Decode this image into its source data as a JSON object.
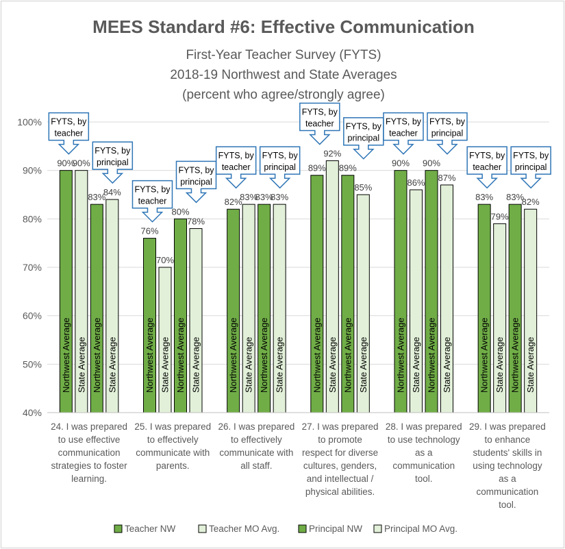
{
  "chart_data": {
    "type": "bar",
    "title": "MEES Standard #6: Effective Communication",
    "subtitle_lines": [
      "First-Year Teacher Survey (FYTS)",
      "2018-19 Northwest and State Averages",
      "(percent who agree/strongly agree)"
    ],
    "y_axis": {
      "min": 40,
      "max": 100,
      "ticks": [
        40,
        50,
        60,
        70,
        80,
        90,
        100
      ],
      "tick_labels": [
        "40%",
        "50%",
        "60%",
        "70%",
        "80%",
        "90%",
        "100%"
      ]
    },
    "grid": true,
    "categories": [
      [
        "24. I was prepared",
        "to use effective",
        "communication",
        "strategies to foster",
        "learning."
      ],
      [
        "25. I was prepared",
        "to effectively",
        "communicate with",
        "parents."
      ],
      [
        "26. I was prepared",
        "to effectively",
        "communicate with",
        "all staff."
      ],
      [
        "27. I was prepared",
        "to promote",
        "respect for diverse",
        "cultures, genders,",
        "and intellectual /",
        "physical abilities."
      ],
      [
        "28. I was prepared",
        "to use technology",
        "as a",
        "communication",
        "tool."
      ],
      [
        "29. I was prepared",
        "to enhance",
        "students' skills in",
        "using technology",
        "as a",
        "communication",
        "tool."
      ]
    ],
    "series": [
      {
        "name": "Teacher NW",
        "bar_label": "Northwest Average",
        "color": "#70ad47",
        "values": [
          90,
          76,
          82,
          89,
          90,
          83
        ]
      },
      {
        "name": "Teacher MO Avg.",
        "bar_label": "State Average",
        "color": "#e2f0d9",
        "values": [
          90,
          70,
          83,
          92,
          86,
          79
        ]
      },
      {
        "name": "Principal NW",
        "bar_label": "Northwest Average",
        "color": "#70ad47",
        "values": [
          83,
          80,
          83,
          89,
          90,
          83
        ]
      },
      {
        "name": "Principal MO Avg.",
        "bar_label": "State Average",
        "color": "#e2f0d9",
        "values": [
          84,
          78,
          83,
          85,
          87,
          82
        ]
      }
    ],
    "value_labels": [
      [
        "90%",
        "90%",
        "83%",
        "84%"
      ],
      [
        "76%",
        "70%",
        "80%",
        "78%"
      ],
      [
        "82%",
        "83%",
        "83%",
        "83%"
      ],
      [
        "89%",
        "92%",
        "89%",
        "85%"
      ],
      [
        "90%",
        "86%",
        "90%",
        "87%"
      ],
      [
        "83%",
        "79%",
        "83%",
        "82%"
      ]
    ],
    "callouts": {
      "teacher": [
        "FYTS, by",
        "teacher"
      ],
      "principal": [
        "FYTS, by",
        "principal"
      ]
    },
    "legend_position": "bottom",
    "colors": {
      "title": "#595959",
      "subtitle": "#595959",
      "axis_text": "#595959",
      "grid": "#d9d9d9",
      "bar_outline": "#000000",
      "callout_border": "#2e75b6"
    }
  }
}
